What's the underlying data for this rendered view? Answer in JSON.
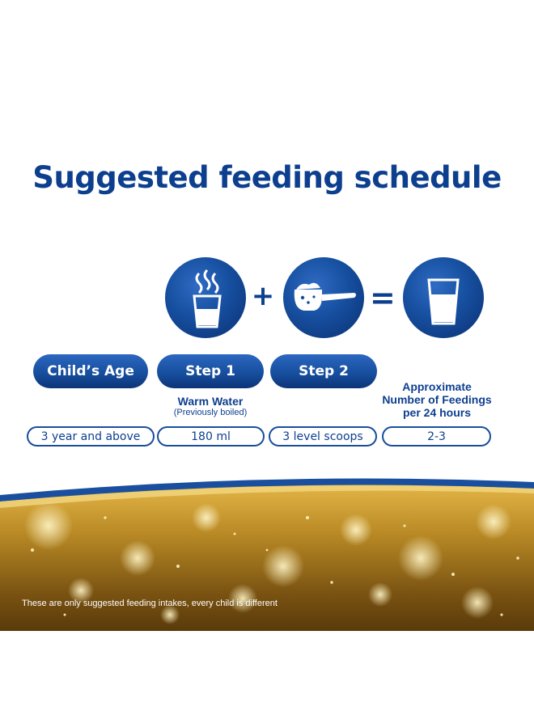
{
  "title": "Suggested feeding schedule",
  "icons": [
    "warm-water-glass-icon",
    "formula-scoop-icon",
    "prepared-milk-glass-icon"
  ],
  "operators": {
    "plus": "+",
    "equals": "="
  },
  "headers": {
    "age": "Child’s Age",
    "step1": "Step 1",
    "step2": "Step 2",
    "feedings_line1": "Approximate",
    "feedings_line2": "Number of Feedings",
    "feedings_line3": "per 24 hours"
  },
  "step1_note": {
    "main": "Warm Water",
    "sub": "(Previously boiled)"
  },
  "row": {
    "age": "3 year and above",
    "water": "180 ml",
    "scoops": "3 level scoops",
    "feedings": "2-3"
  },
  "disclaimer": "These are only suggested feeding intakes, every child is different",
  "colors": {
    "brand_blue": "#0d3f8f",
    "gold": "#b8860b",
    "white": "#ffffff"
  }
}
